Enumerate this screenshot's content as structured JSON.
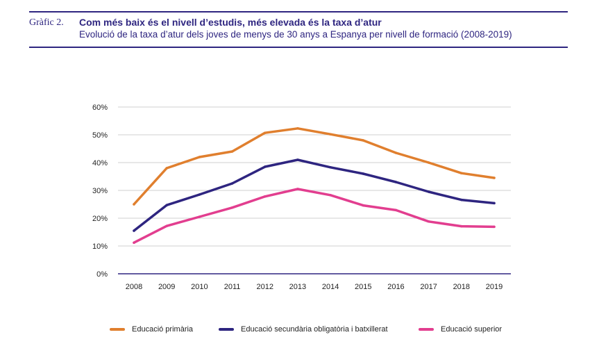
{
  "header": {
    "label": "Gràfic 2.",
    "title": "Com més baix és el nivell d’estudis, més elevada és la taxa d’atur",
    "subtitle": "Evolució de la taxa d’atur dels joves de menys de 30 anys a Espanya per nivell de formació (2008-2019)"
  },
  "chart_data": {
    "type": "line",
    "title": "Com més baix és el nivell d’estudis, més elevada és la taxa d’atur",
    "subtitle": "Evolució de la taxa d’atur dels joves de menys de 30 anys a Espanya per nivell de formació (2008-2019)",
    "x": [
      "2008",
      "2009",
      "2010",
      "2011",
      "2012",
      "2013",
      "2014",
      "2015",
      "2016",
      "2017",
      "2018",
      "2019"
    ],
    "y_ticks": [
      "0%",
      "10%",
      "20%",
      "30%",
      "40%",
      "50%",
      "60%"
    ],
    "ylim": [
      0,
      60
    ],
    "grid": true,
    "legend_position": "bottom",
    "series": [
      {
        "name": "Educació primària",
        "color": "#e07f2e",
        "values": [
          25,
          38,
          42,
          44,
          50.7,
          52.3,
          50.2,
          48,
          43.5,
          40,
          36.2,
          34.5
        ]
      },
      {
        "name": "Educació secundària obligatòria i batxillerat",
        "color": "#2e2580",
        "values": [
          15.5,
          24.7,
          28.5,
          32.5,
          38.5,
          41,
          38.3,
          36,
          33,
          29.5,
          26.6,
          25.4
        ]
      },
      {
        "name": "Educació superior",
        "color": "#e23e8f",
        "values": [
          11.2,
          17.2,
          20.5,
          23.8,
          27.8,
          30.5,
          28.3,
          24.6,
          22.9,
          18.8,
          17.1,
          16.9
        ]
      }
    ]
  }
}
